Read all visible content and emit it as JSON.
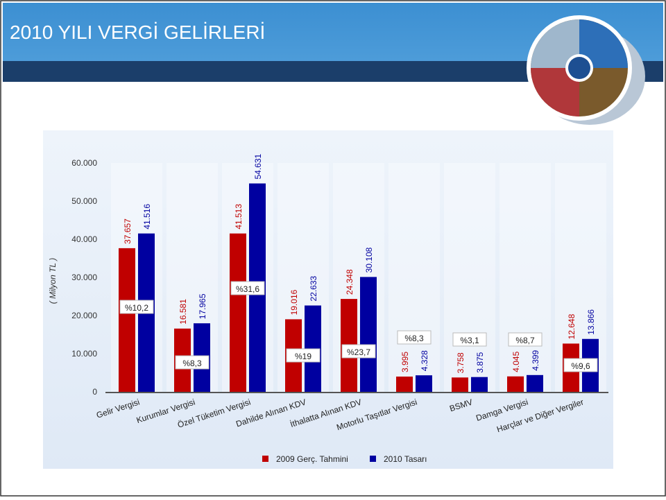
{
  "header": {
    "title": "2010 YILI VERGİ GELİRLERİ"
  },
  "chart_data": {
    "type": "bar",
    "y_label": "( Milyon TL )",
    "categories": [
      "Gelir Vergisi",
      "Kurumlar Vergisi",
      "Özel Tüketim Vergisi",
      "Dahilde Alınan KDV",
      "İthalatta Alınan KDV",
      "Motorlu Taşıtlar Vergisi",
      "BSMV",
      "Damga Vergisi",
      "Harçlar ve Diğer Vergiler"
    ],
    "series": [
      {
        "name": "2009 Gerç. Tahmini",
        "color": "#c00000",
        "values": [
          37657,
          16581,
          41513,
          19016,
          24348,
          3995,
          3758,
          4045,
          12648
        ],
        "value_labels": [
          "37.657",
          "16.581",
          "41.513",
          "19.016",
          "24.348",
          "3.995",
          "3.758",
          "4.045",
          "12.648"
        ]
      },
      {
        "name": "2010 Tasarı",
        "color": "#0000a0",
        "values": [
          41516,
          17965,
          54631,
          22633,
          30108,
          4328,
          3875,
          4399,
          13866
        ],
        "value_labels": [
          "41.516",
          "17.965",
          "54.631",
          "22.633",
          "30.108",
          "4.328",
          "3.875",
          "4.399",
          "13.866"
        ]
      }
    ],
    "annotations": [
      "%10,2",
      "%8,3",
      "%31,6",
      "%19",
      "%23,7",
      "%8,3",
      "%3,1",
      "%8,7",
      "%9,6"
    ],
    "ylim": [
      0,
      60000
    ],
    "yticks": [
      0,
      {
        "value": 10000,
        "label": "10.000"
      },
      {
        "value": 20000,
        "label": "20.000"
      },
      {
        "value": 30000,
        "label": "30.000"
      },
      {
        "value": 40000,
        "label": "40.000"
      },
      {
        "value": 50000,
        "label": "50.000"
      },
      {
        "value": 60000,
        "label": "60.000"
      }
    ],
    "legend": "bottom"
  }
}
